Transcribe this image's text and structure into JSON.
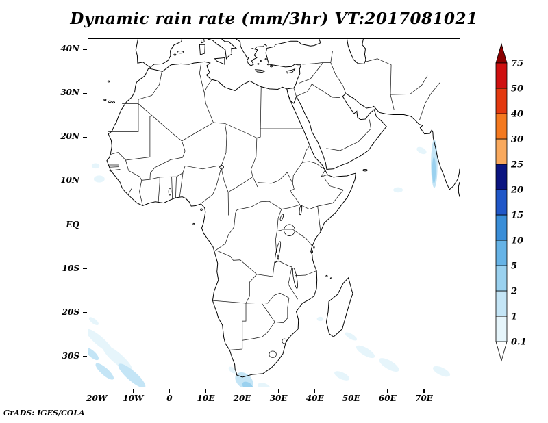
{
  "title": "Dynamic rain rate (mm/3hr) VT:2017081021",
  "credit": "GrADS: IGES/COLA",
  "chart_data": {
    "type": "heatmap",
    "title": "Dynamic rain rate (mm/3hr) VT:2017081021",
    "variable": "Dynamic rain rate",
    "units": "mm/3hr",
    "valid_time": "2017081021",
    "region": {
      "lon_min": -22.5,
      "lon_max": 80,
      "lat_min": -37,
      "lat_max": 42.5
    },
    "grid": false,
    "x_ticks": [
      {
        "lon": -20,
        "label": "20W"
      },
      {
        "lon": -10,
        "label": "10W"
      },
      {
        "lon": 0,
        "label": "0"
      },
      {
        "lon": 10,
        "label": "10E"
      },
      {
        "lon": 20,
        "label": "20E"
      },
      {
        "lon": 30,
        "label": "30E"
      },
      {
        "lon": 40,
        "label": "40E"
      },
      {
        "lon": 50,
        "label": "50E"
      },
      {
        "lon": 60,
        "label": "60E"
      },
      {
        "lon": 70,
        "label": "70E"
      }
    ],
    "y_ticks": [
      {
        "lat": 40,
        "label": "40N"
      },
      {
        "lat": 30,
        "label": "30N"
      },
      {
        "lat": 20,
        "label": "20N"
      },
      {
        "lat": 10,
        "label": "10N"
      },
      {
        "lat": 0,
        "label": "EQ"
      },
      {
        "lat": -10,
        "label": "10S"
      },
      {
        "lat": -20,
        "label": "20S"
      },
      {
        "lat": -30,
        "label": "30S"
      }
    ],
    "colorbar": {
      "orientation": "vertical",
      "levels": [
        0.1,
        1,
        2,
        5,
        10,
        15,
        20,
        25,
        30,
        40,
        50,
        75
      ],
      "labels": [
        "0.1",
        "1",
        "2",
        "5",
        "10",
        "15",
        "20",
        "25",
        "30",
        "40",
        "50",
        "75"
      ],
      "segment_colors": [
        "#ffffff",
        "#e6f5fb",
        "#c4e5f6",
        "#9ad1ef",
        "#66b3e6",
        "#3a8ed8",
        "#2057c8",
        "#0a1480",
        "#f9a95d",
        "#f4791f",
        "#e33910",
        "#cf1010",
        "#8b0000"
      ]
    },
    "rain_patches": [
      {
        "lon": -19.5,
        "lat": -26.5,
        "rx": 4.5,
        "ry": 1.1,
        "rot": 35,
        "level": 0.1
      },
      {
        "lon": -14.5,
        "lat": -30.5,
        "rx": 5.0,
        "ry": 1.3,
        "rot": 35,
        "level": 0.1
      },
      {
        "lon": -10.5,
        "lat": -34.5,
        "rx": 4.5,
        "ry": 1.2,
        "rot": 35,
        "level": 1
      },
      {
        "lon": -18.0,
        "lat": -33.5,
        "rx": 3.0,
        "ry": 0.9,
        "rot": 35,
        "level": 1
      },
      {
        "lon": -21.5,
        "lat": -29.5,
        "rx": 2.2,
        "ry": 0.8,
        "rot": 35,
        "level": 1
      },
      {
        "lon": -21.0,
        "lat": -22.0,
        "rx": 1.5,
        "ry": 0.6,
        "rot": 30,
        "level": 0.1
      },
      {
        "lon": 20.5,
        "lat": -35.6,
        "rx": 2.6,
        "ry": 1.7,
        "rot": 25,
        "level": 1
      },
      {
        "lon": 21.5,
        "lat": -36.9,
        "rx": 1.6,
        "ry": 0.9,
        "rot": 25,
        "level": 2
      },
      {
        "lon": 17.3,
        "lat": -33.2,
        "rx": 1.2,
        "ry": 0.6,
        "rot": 30,
        "level": 0.1
      },
      {
        "lon": 26.0,
        "lat": -37.0,
        "rx": 1.8,
        "ry": 0.8,
        "rot": 15,
        "level": 0.1
      },
      {
        "lon": 47.5,
        "lat": -34.5,
        "rx": 2.2,
        "ry": 0.8,
        "rot": 20,
        "level": 0.1
      },
      {
        "lon": 54.0,
        "lat": -29.0,
        "rx": 2.8,
        "ry": 0.9,
        "rot": 25,
        "level": 0.1
      },
      {
        "lon": 60.5,
        "lat": -32.0,
        "rx": 3.0,
        "ry": 1.0,
        "rot": 25,
        "level": 0.1
      },
      {
        "lon": 50.0,
        "lat": -25.5,
        "rx": 1.8,
        "ry": 0.6,
        "rot": 25,
        "level": 0.1
      },
      {
        "lon": 75.0,
        "lat": -33.5,
        "rx": 2.5,
        "ry": 0.9,
        "rot": 20,
        "level": 0.1
      },
      {
        "lon": 41.5,
        "lat": -21.5,
        "rx": 0.9,
        "ry": 0.5,
        "rot": 0,
        "level": 0.1
      },
      {
        "lon": 73.0,
        "lat": 14.0,
        "rx": 0.9,
        "ry": 5.5,
        "rot": 0,
        "level": 1
      },
      {
        "lon": 72.9,
        "lat": 12.5,
        "rx": 0.5,
        "ry": 3.0,
        "rot": 0,
        "level": 2
      },
      {
        "lon": 69.5,
        "lat": 17.0,
        "rx": 1.4,
        "ry": 0.7,
        "rot": 20,
        "level": 0.1
      },
      {
        "lon": -19.5,
        "lat": 10.5,
        "rx": 1.5,
        "ry": 0.8,
        "rot": 0,
        "level": 0.1
      },
      {
        "lon": -20.5,
        "lat": 13.5,
        "rx": 1.1,
        "ry": 0.6,
        "rot": 0,
        "level": 0.1
      },
      {
        "lon": 63.0,
        "lat": 8.0,
        "rx": 1.3,
        "ry": 0.6,
        "rot": 0,
        "level": 0.1
      }
    ]
  }
}
